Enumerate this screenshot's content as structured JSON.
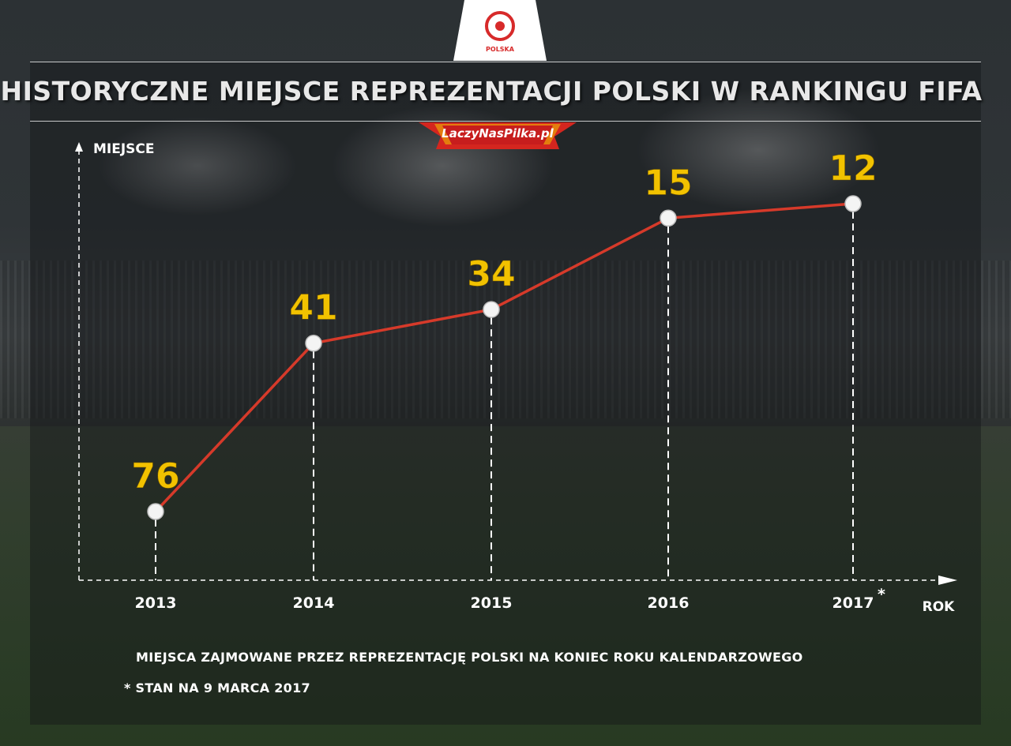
{
  "header": {
    "badge_text": "POLSKA",
    "title": "HISTORYCZNE MIEJSCE REPREZENTACJI POLSKI W RANKINGU FIFA",
    "brand": "LaczyNasPilka.pl"
  },
  "chart_data": {
    "type": "line",
    "title": "HISTORYCZNE MIEJSCE REPREZENTACJI POLSKI W RANKINGU FIFA",
    "xlabel": "ROK",
    "ylabel": "MIEJSCE",
    "categories": [
      "2013",
      "2014",
      "2015",
      "2016",
      "2017"
    ],
    "category_marks": [
      "",
      "",
      "",
      "",
      "*"
    ],
    "series": [
      {
        "values": [
          76,
          41,
          34,
          15,
          12
        ]
      }
    ],
    "y_inverted": true,
    "grid": false,
    "colors": {
      "line": "#d63a2a",
      "value_label": "#f2c200",
      "axis": "#ffffff"
    }
  },
  "notes": {
    "line1": "MIEJSCA ZAJMOWANE PRZEZ REPREZENTACJĘ POLSKI NA KONIEC ROKU KALENDARZOWEGO",
    "line2": "* STAN NA 9 MARCA 2017"
  }
}
